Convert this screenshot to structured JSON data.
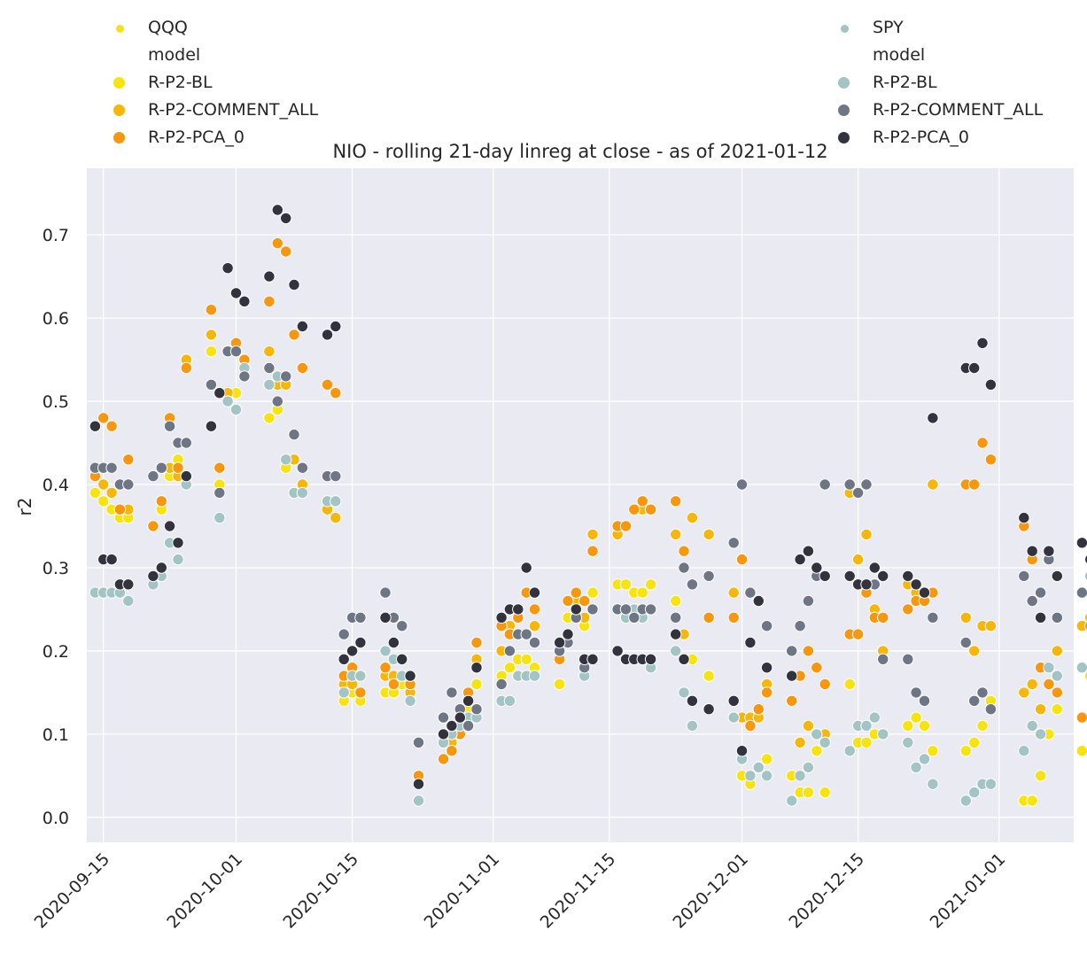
{
  "colors": {
    "plot_bg": "#eaeaf2",
    "grid": "#ffffff",
    "text": "#262626",
    "point_edge": "#ffffff"
  },
  "legends": [
    {
      "position": "top-left",
      "items": [
        {
          "kind": "market",
          "label": "QQQ",
          "color": "#f5e21b"
        },
        {
          "kind": "header",
          "label": "model"
        },
        {
          "kind": "model",
          "label": "R-P2-BL",
          "color": "#f7e30f"
        },
        {
          "kind": "model",
          "label": "R-P2-COMMENT_ALL",
          "color": "#f6b70a"
        },
        {
          "kind": "model",
          "label": "R-P2-PCA_0",
          "color": "#f7960f"
        }
      ]
    },
    {
      "position": "top-right",
      "items": [
        {
          "kind": "market",
          "label": "SPY",
          "color": "#a3c4c4"
        },
        {
          "kind": "header",
          "label": "model"
        },
        {
          "kind": "model",
          "label": "R-P2-BL",
          "color": "#a3c4c4"
        },
        {
          "kind": "model",
          "label": "R-P2-COMMENT_ALL",
          "color": "#6e7585"
        },
        {
          "kind": "model",
          "label": "R-P2-PCA_0",
          "color": "#33333f"
        }
      ]
    }
  ],
  "chart_data": {
    "type": "scatter",
    "title": "NIO - rolling 21-day linreg at close - as of 2021-01-12",
    "xlabel": "",
    "ylabel": "r2",
    "xlim": [
      "2020-09-13",
      "2021-01-10"
    ],
    "ylim": [
      -0.03,
      0.78
    ],
    "grid": true,
    "legend": "top-left and top-right",
    "x_ticks": [
      "2020-09-15",
      "2020-10-01",
      "2020-10-15",
      "2020-11-01",
      "2020-11-15",
      "2020-12-01",
      "2020-12-15",
      "2021-01-01"
    ],
    "y_ticks": [
      "0.0",
      "0.1",
      "0.2",
      "0.3",
      "0.4",
      "0.5",
      "0.6",
      "0.7"
    ],
    "dates": [
      "2020-09-14",
      "2020-09-15",
      "2020-09-16",
      "2020-09-17",
      "2020-09-18",
      "2020-09-21",
      "2020-09-22",
      "2020-09-23",
      "2020-09-24",
      "2020-09-25",
      "2020-09-28",
      "2020-09-29",
      "2020-09-30",
      "2020-10-01",
      "2020-10-02",
      "2020-10-05",
      "2020-10-06",
      "2020-10-07",
      "2020-10-08",
      "2020-10-09",
      "2020-10-12",
      "2020-10-13",
      "2020-10-14",
      "2020-10-15",
      "2020-10-16",
      "2020-10-19",
      "2020-10-20",
      "2020-10-21",
      "2020-10-22",
      "2020-10-23",
      "2020-10-26",
      "2020-10-27",
      "2020-10-28",
      "2020-10-29",
      "2020-10-30",
      "2020-11-02",
      "2020-11-03",
      "2020-11-04",
      "2020-11-05",
      "2020-11-06",
      "2020-11-09",
      "2020-11-10",
      "2020-11-11",
      "2020-11-12",
      "2020-11-13",
      "2020-11-16",
      "2020-11-17",
      "2020-11-18",
      "2020-11-19",
      "2020-11-20",
      "2020-11-23",
      "2020-11-24",
      "2020-11-25",
      "2020-11-27",
      "2020-11-30",
      "2020-12-01",
      "2020-12-02",
      "2020-12-03",
      "2020-12-04",
      "2020-12-07",
      "2020-12-08",
      "2020-12-09",
      "2020-12-10",
      "2020-12-11",
      "2020-12-14",
      "2020-12-15",
      "2020-12-16",
      "2020-12-17",
      "2020-12-18",
      "2020-12-21",
      "2020-12-22",
      "2020-12-23",
      "2020-12-24",
      "2020-12-28",
      "2020-12-29",
      "2020-12-30",
      "2020-12-31",
      "2021-01-04",
      "2021-01-05",
      "2021-01-06",
      "2021-01-07",
      "2021-01-08",
      "2021-01-11",
      "2021-01-12"
    ],
    "series": [
      {
        "name": "R-P2-BL",
        "color": "#f7e30f",
        "values": [
          0.39,
          0.38,
          0.37,
          0.36,
          0.36,
          0.35,
          0.37,
          0.41,
          0.43,
          0.54,
          0.56,
          0.4,
          0.51,
          0.51,
          0.53,
          0.48,
          0.49,
          0.42,
          0.39,
          0.39,
          0.37,
          0.36,
          0.14,
          0.15,
          0.14,
          0.15,
          0.15,
          0.16,
          0.14,
          0.05,
          0.07,
          0.08,
          0.1,
          0.13,
          0.16,
          0.17,
          0.18,
          0.19,
          0.19,
          0.18,
          0.16,
          0.24,
          0.25,
          0.23,
          0.27,
          0.28,
          0.28,
          0.27,
          0.27,
          0.28,
          0.26,
          0.22,
          0.19,
          0.17,
          0.12,
          0.05,
          0.04,
          0.06,
          0.07,
          0.05,
          0.03,
          0.03,
          0.08,
          0.03,
          0.16,
          0.09,
          0.09,
          0.1,
          0.1,
          0.11,
          0.12,
          0.11,
          0.08,
          0.08,
          0.09,
          0.11,
          0.14,
          0.02,
          0.02,
          0.05,
          0.1,
          0.13,
          0.08,
          0.17
        ]
      },
      {
        "name": "R-P2-COMMENT_ALL",
        "color": "#f6b70a",
        "values": [
          0.41,
          0.4,
          0.39,
          0.37,
          0.37,
          0.35,
          0.38,
          0.42,
          0.41,
          0.55,
          0.58,
          0.42,
          0.51,
          0.56,
          0.55,
          0.56,
          0.52,
          0.52,
          0.43,
          0.4,
          0.37,
          0.36,
          0.16,
          0.16,
          0.15,
          0.17,
          0.17,
          0.19,
          0.15,
          0.05,
          0.07,
          0.09,
          0.11,
          0.15,
          0.19,
          0.2,
          0.23,
          0.22,
          0.22,
          0.23,
          0.19,
          0.26,
          0.26,
          0.24,
          0.34,
          0.34,
          0.35,
          0.37,
          0.37,
          0.37,
          0.34,
          0.22,
          0.36,
          0.34,
          0.27,
          0.12,
          0.12,
          0.12,
          0.16,
          0.14,
          0.09,
          0.11,
          0.1,
          0.1,
          0.39,
          0.31,
          0.34,
          0.25,
          0.2,
          0.28,
          0.27,
          0.27,
          0.4,
          0.24,
          0.2,
          0.23,
          0.23,
          0.15,
          0.16,
          0.13,
          0.16,
          0.2,
          0.23,
          0.24
        ]
      },
      {
        "name": "R-P2-PCA_0",
        "color": "#f7960f",
        "values": [
          0.41,
          0.48,
          0.47,
          0.37,
          0.43,
          0.35,
          0.38,
          0.48,
          0.42,
          0.54,
          0.61,
          0.42,
          0.56,
          0.57,
          0.55,
          0.62,
          0.69,
          0.68,
          0.58,
          0.54,
          0.52,
          0.51,
          0.17,
          0.18,
          0.15,
          0.18,
          0.16,
          0.19,
          0.16,
          0.05,
          0.07,
          0.08,
          0.1,
          0.15,
          0.21,
          0.23,
          0.22,
          0.24,
          0.27,
          0.25,
          0.19,
          0.26,
          0.27,
          0.26,
          0.32,
          0.35,
          0.35,
          0.37,
          0.38,
          0.37,
          0.38,
          0.32,
          0.28,
          0.24,
          0.24,
          0.31,
          0.11,
          0.13,
          0.15,
          0.14,
          0.17,
          0.2,
          0.18,
          0.16,
          0.22,
          0.22,
          0.27,
          0.24,
          0.24,
          0.25,
          0.26,
          0.26,
          0.27,
          0.4,
          0.4,
          0.45,
          0.43,
          0.35,
          0.31,
          0.18,
          0.16,
          0.15,
          0.12,
          0.23
        ]
      },
      {
        "name": "SPY R-P2-BL",
        "color": "#a3c4c4",
        "values": [
          0.27,
          0.27,
          0.27,
          0.27,
          0.26,
          0.28,
          0.29,
          0.33,
          0.31,
          0.4,
          0.47,
          0.36,
          0.5,
          0.49,
          0.54,
          0.52,
          0.53,
          0.43,
          0.39,
          0.39,
          0.38,
          0.38,
          0.15,
          0.17,
          0.17,
          0.2,
          0.19,
          0.17,
          0.14,
          0.02,
          0.09,
          0.1,
          0.11,
          0.12,
          0.12,
          0.14,
          0.14,
          0.17,
          0.17,
          0.17,
          0.2,
          0.22,
          0.24,
          0.17,
          0.25,
          0.25,
          0.24,
          0.25,
          0.24,
          0.18,
          0.2,
          0.15,
          0.11,
          0.13,
          0.12,
          0.07,
          0.05,
          0.06,
          0.05,
          0.02,
          0.05,
          0.06,
          0.1,
          0.09,
          0.08,
          0.11,
          0.11,
          0.12,
          0.1,
          0.09,
          0.06,
          0.07,
          0.04,
          0.02,
          0.03,
          0.04,
          0.04,
          0.08,
          0.11,
          0.1,
          0.18,
          0.17,
          0.18,
          0.29
        ]
      },
      {
        "name": "SPY R-P2-COMMENT_ALL",
        "color": "#6e7585",
        "values": [
          0.42,
          0.42,
          0.42,
          0.4,
          0.4,
          0.41,
          0.42,
          0.47,
          0.45,
          0.45,
          0.52,
          0.39,
          0.56,
          0.56,
          0.53,
          0.54,
          0.5,
          0.53,
          0.46,
          0.42,
          0.41,
          0.41,
          0.22,
          0.24,
          0.24,
          0.27,
          0.24,
          0.23,
          0.17,
          0.09,
          0.12,
          0.15,
          0.13,
          0.11,
          0.13,
          0.16,
          0.2,
          0.22,
          0.22,
          0.21,
          0.2,
          0.21,
          0.24,
          0.18,
          0.25,
          0.25,
          0.25,
          0.24,
          0.25,
          0.25,
          0.24,
          0.3,
          0.28,
          0.29,
          0.33,
          0.4,
          0.27,
          0.26,
          0.23,
          0.2,
          0.23,
          0.26,
          0.29,
          0.4,
          0.4,
          0.39,
          0.4,
          0.28,
          0.19,
          0.19,
          0.15,
          0.14,
          0.24,
          0.21,
          0.14,
          0.15,
          0.13,
          0.29,
          0.26,
          0.27,
          0.31,
          0.24,
          0.27,
          0.33
        ]
      },
      {
        "name": "SPY R-P2-PCA_0",
        "color": "#33333f",
        "values": [
          0.47,
          0.31,
          0.31,
          0.28,
          0.28,
          0.29,
          0.3,
          0.35,
          0.33,
          0.41,
          0.47,
          0.51,
          0.66,
          0.63,
          0.62,
          0.65,
          0.73,
          0.72,
          0.64,
          0.59,
          0.58,
          0.59,
          0.19,
          0.2,
          0.21,
          0.24,
          0.21,
          0.19,
          0.17,
          0.04,
          0.1,
          0.11,
          0.12,
          0.14,
          0.18,
          0.24,
          0.25,
          0.25,
          0.3,
          0.27,
          0.21,
          0.22,
          0.25,
          0.19,
          0.19,
          0.2,
          0.19,
          0.19,
          0.19,
          0.19,
          0.22,
          0.19,
          0.14,
          0.13,
          0.14,
          0.08,
          0.21,
          0.26,
          0.18,
          0.17,
          0.31,
          0.32,
          0.3,
          0.29,
          0.29,
          0.28,
          0.28,
          0.3,
          0.29,
          0.29,
          0.28,
          0.27,
          0.48,
          0.54,
          0.54,
          0.57,
          0.52,
          0.36,
          0.32,
          0.24,
          0.32,
          0.29,
          0.33,
          0.31
        ]
      }
    ]
  }
}
